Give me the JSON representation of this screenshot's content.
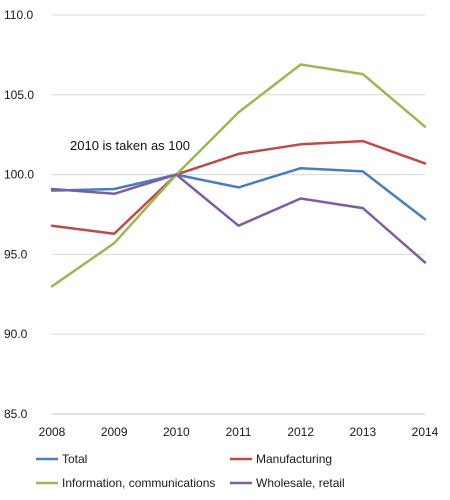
{
  "chart_data": {
    "type": "line",
    "x": [
      2008,
      2009,
      2010,
      2011,
      2012,
      2013,
      2014
    ],
    "x_tick_labels": [
      "2008",
      "2009",
      "2010",
      "2011",
      "2012",
      "2013",
      "2014"
    ],
    "ylim": [
      85,
      110
    ],
    "y_ticks": [
      85,
      90,
      95,
      100,
      105,
      110
    ],
    "y_tick_labels": [
      "85.0",
      "90.0",
      "95.0",
      "100.0",
      "105.0",
      "110.0"
    ],
    "grid": "horizontal",
    "legend_position": "bottom",
    "annotation": "2010 is taken as 100",
    "series": [
      {
        "name": "Total",
        "color": "#4a7ebb",
        "values": [
          99.0,
          99.1,
          100.0,
          99.2,
          100.4,
          100.2,
          97.2
        ]
      },
      {
        "name": "Manufacturing",
        "color": "#be4b48",
        "values": [
          96.8,
          96.3,
          100.0,
          101.3,
          101.9,
          102.1,
          100.7
        ]
      },
      {
        "name": "Information, communications",
        "color": "#98b954",
        "values": [
          93.0,
          95.7,
          100.0,
          103.9,
          106.9,
          106.3,
          103.0
        ]
      },
      {
        "name": "Wholesale, retail",
        "color": "#7d5fa0",
        "values": [
          99.1,
          98.8,
          100.0,
          96.8,
          98.5,
          97.9,
          94.5
        ]
      }
    ]
  }
}
